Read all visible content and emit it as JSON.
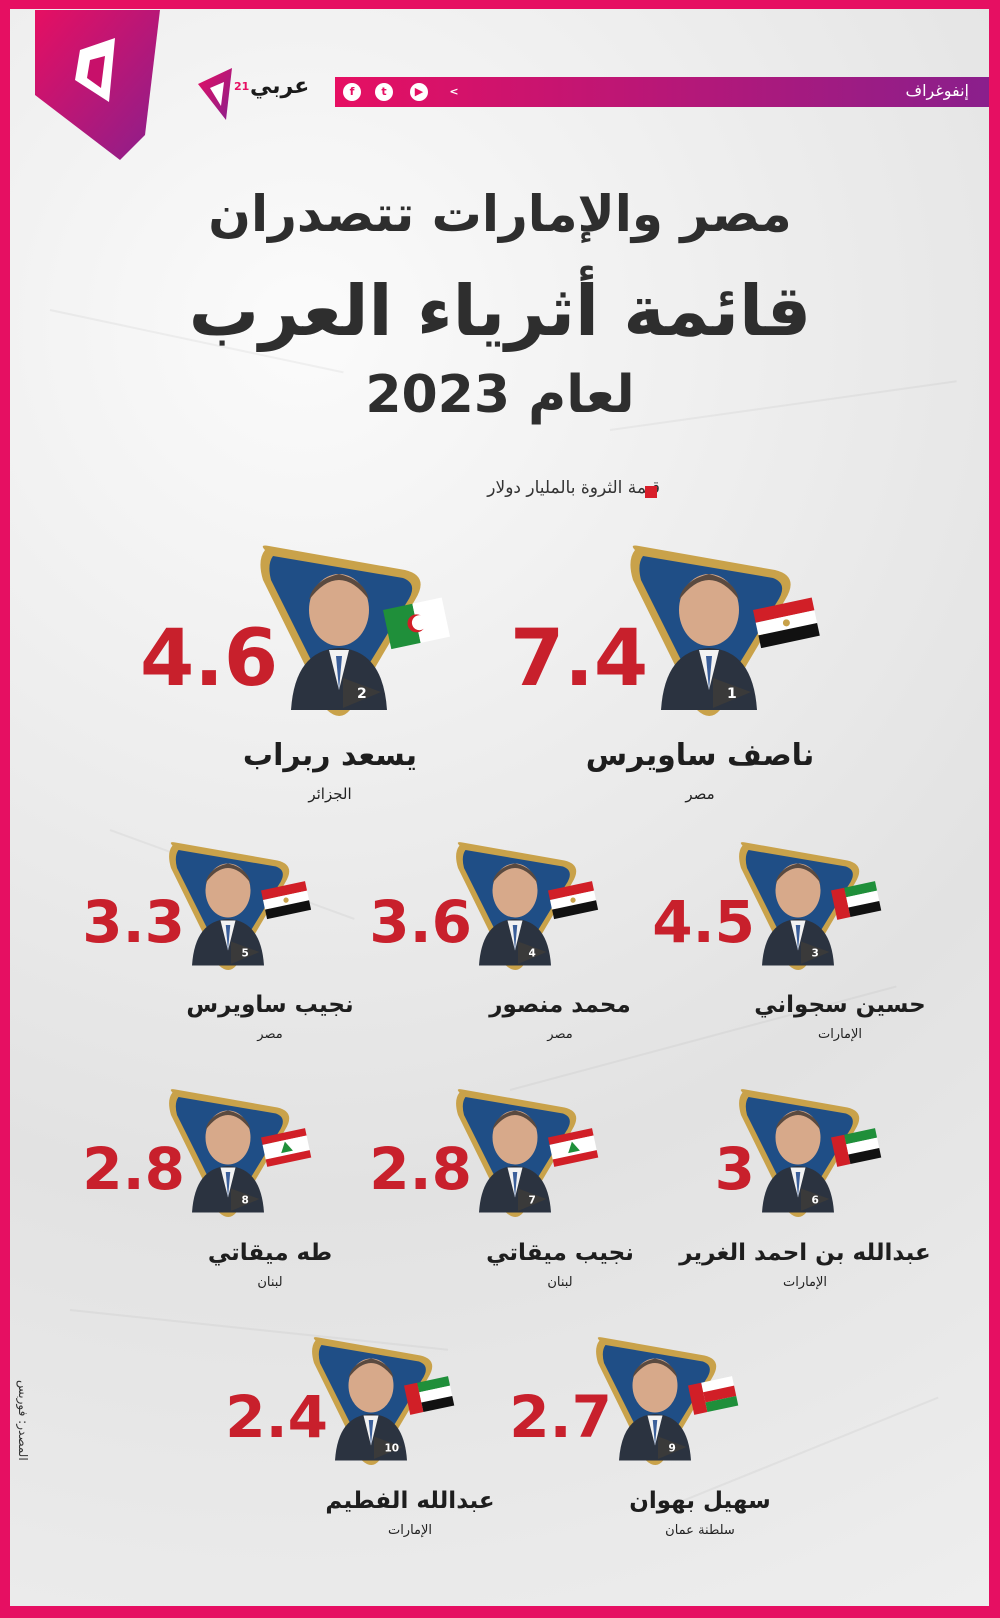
{
  "header": {
    "section_label": "إنفوغراف",
    "brand_name": "عربي",
    "brand_sup": "21",
    "social_icons": [
      "facebook-icon",
      "twitter-icon",
      "youtube-icon",
      "arabi21-icon"
    ]
  },
  "title": {
    "line1": "مصر والإمارات تتصدران",
    "line2": "قائمة أثرياء العرب",
    "line3": "لعام 2023"
  },
  "legend": {
    "label": "قيمة الثروة بالمليار دولار",
    "color": "#d81e2a"
  },
  "colors": {
    "accent": "#e60f62",
    "value": "#c8202c",
    "frame_blue": "#1f4e86",
    "frame_gold": "#c9a24a"
  },
  "people": [
    {
      "rank": "1",
      "name": "ناصف ساويرس",
      "country": "مصر",
      "value": "7.4",
      "flag": "egypt-flag"
    },
    {
      "rank": "2",
      "name": "يسعد ربراب",
      "country": "الجزائر",
      "value": "4.6",
      "flag": "algeria-flag"
    },
    {
      "rank": "3",
      "name": "حسين سجواني",
      "country": "الإمارات",
      "value": "4.5",
      "flag": "uae-flag"
    },
    {
      "rank": "4",
      "name": "محمد منصور",
      "country": "مصر",
      "value": "3.6",
      "flag": "egypt-flag"
    },
    {
      "rank": "5",
      "name": "نجيب ساويرس",
      "country": "مصر",
      "value": "3.3",
      "flag": "egypt-flag"
    },
    {
      "rank": "6",
      "name": "عبدالله بن احمد الغرير",
      "country": "الإمارات",
      "value": "3",
      "flag": "uae-flag"
    },
    {
      "rank": "7",
      "name": "نجيب ميقاتي",
      "country": "لبنان",
      "value": "2.8",
      "flag": "lebanon-flag"
    },
    {
      "rank": "8",
      "name": "طه ميقاتي",
      "country": "لبنان",
      "value": "2.8",
      "flag": "lebanon-flag"
    },
    {
      "rank": "9",
      "name": "سهيل بهوان",
      "country": "سلطنة عمان",
      "value": "2.7",
      "flag": "oman-flag"
    },
    {
      "rank": "10",
      "name": "عبدالله الفطيم",
      "country": "الإمارات",
      "value": "2.4",
      "flag": "uae-flag"
    }
  ],
  "side_credit": "المصدر: فوربس"
}
